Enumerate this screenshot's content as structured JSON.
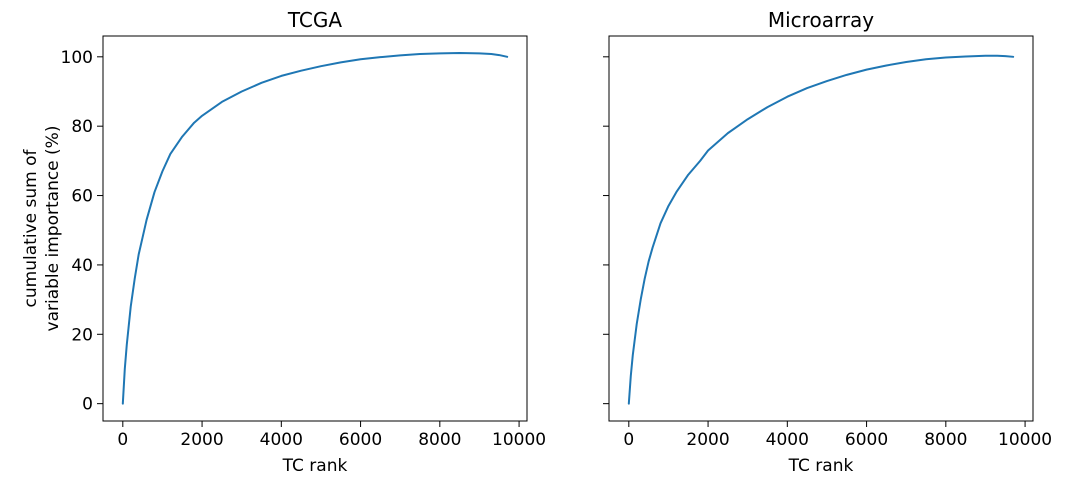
{
  "colors": {
    "line": "#1f77b4",
    "axis": "#000000",
    "background": "#ffffff"
  },
  "chart_data": [
    {
      "type": "line",
      "title": "TCGA",
      "xlabel": "TC rank",
      "ylabel": "cumulative sum of\nvariable importance (%)",
      "xlim": [
        -500,
        10200
      ],
      "ylim": [
        -5,
        106
      ],
      "xticks": [
        0,
        2000,
        4000,
        6000,
        8000,
        10000
      ],
      "yticks": [
        0,
        20,
        40,
        60,
        80,
        100
      ],
      "xtick_labels": [
        "0",
        "2000",
        "4000",
        "6000",
        "8000",
        "10000"
      ],
      "ytick_labels": [
        "0",
        "20",
        "40",
        "60",
        "80",
        "100"
      ],
      "grid": false,
      "series": [
        {
          "x": [
            0,
            50,
            100,
            200,
            300,
            400,
            500,
            600,
            800,
            1000,
            1200,
            1500,
            1800,
            2000,
            2500,
            3000,
            3500,
            4000,
            4500,
            5000,
            5500,
            6000,
            6500,
            7000,
            7500,
            8000,
            8500,
            9000,
            9300,
            9500,
            9700
          ],
          "y": [
            0,
            10,
            17,
            28,
            36,
            43,
            48,
            53,
            61,
            67,
            72,
            77,
            81,
            83,
            87,
            90,
            92.5,
            94.5,
            96,
            97.3,
            98.4,
            99.3,
            99.9,
            100.4,
            100.8,
            101,
            101.1,
            101,
            100.8,
            100.5,
            100
          ]
        }
      ]
    },
    {
      "type": "line",
      "title": "Microarray",
      "xlabel": "TC rank",
      "ylabel": "",
      "xlim": [
        -500,
        10200
      ],
      "ylim": [
        -5,
        106
      ],
      "xticks": [
        0,
        2000,
        4000,
        6000,
        8000,
        10000
      ],
      "yticks": [
        0,
        20,
        40,
        60,
        80,
        100
      ],
      "xtick_labels": [
        "0",
        "2000",
        "4000",
        "6000",
        "8000",
        "10000"
      ],
      "ytick_labels": [],
      "grid": false,
      "series": [
        {
          "x": [
            0,
            50,
            100,
            200,
            300,
            400,
            500,
            600,
            800,
            1000,
            1200,
            1500,
            1800,
            2000,
            2500,
            3000,
            3500,
            4000,
            4500,
            5000,
            5500,
            6000,
            6500,
            7000,
            7500,
            8000,
            8500,
            9000,
            9300,
            9500,
            9700
          ],
          "y": [
            0,
            8,
            14,
            23,
            30,
            36,
            41,
            45,
            52,
            57,
            61,
            66,
            70,
            73,
            78,
            82,
            85.5,
            88.5,
            91,
            93,
            94.8,
            96.3,
            97.5,
            98.5,
            99.3,
            99.8,
            100.1,
            100.3,
            100.3,
            100.2,
            100
          ]
        }
      ]
    }
  ]
}
